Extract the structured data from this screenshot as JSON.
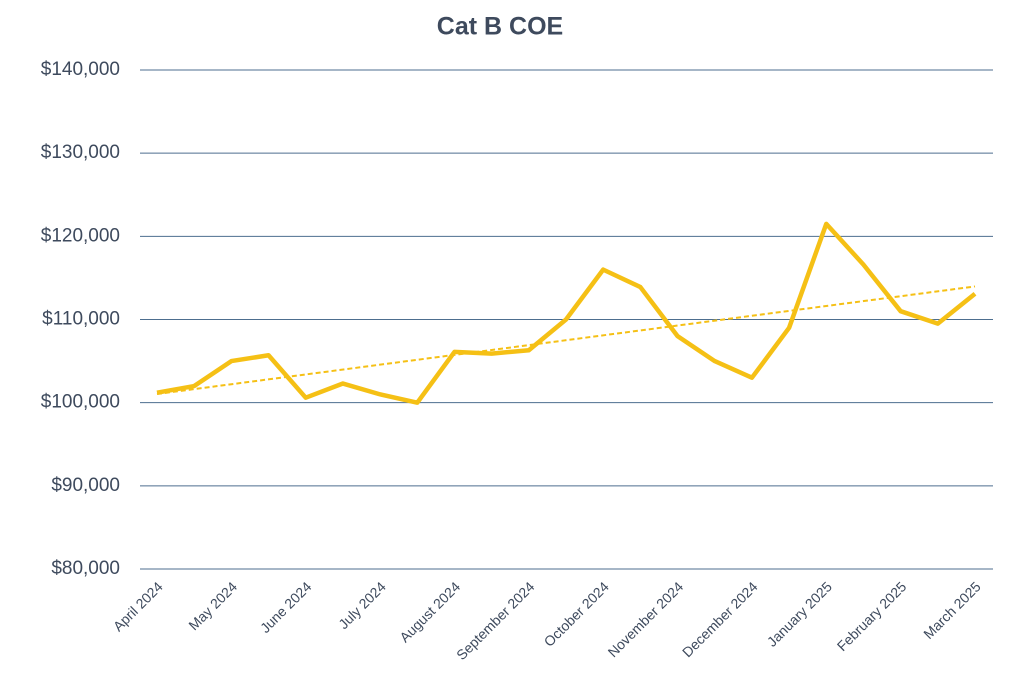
{
  "chart_data": {
    "type": "line",
    "title": "Cat B COE",
    "categories": [
      "April 2024",
      null,
      "May 2024",
      null,
      "June 2024",
      null,
      "July 2024",
      null,
      "August 2024",
      null,
      "September 2024",
      null,
      "October 2024",
      null,
      "November 2024",
      null,
      "December 2024",
      null,
      "January 2025",
      null,
      "February 2025",
      null,
      "March 2025"
    ],
    "series": [
      {
        "name": "Cat B COE",
        "color": "#f5c015",
        "values": [
          101200,
          102000,
          105000,
          105700,
          100600,
          102300,
          101000,
          100000,
          106100,
          105900,
          106300,
          110000,
          116000,
          113900,
          108000,
          105000,
          103000,
          109000,
          121500,
          116600,
          111000,
          109500,
          113100
        ]
      }
    ],
    "trendline": "linear",
    "ylim": [
      80000,
      140000
    ],
    "yticks": [
      {
        "value": 80000,
        "label": "$80,000"
      },
      {
        "value": 90000,
        "label": "$90,000"
      },
      {
        "value": 100000,
        "label": "$100,000"
      },
      {
        "value": 110000,
        "label": "$110,000"
      },
      {
        "value": 120000,
        "label": "$120,000"
      },
      {
        "value": 130000,
        "label": "$130,000"
      },
      {
        "value": 140000,
        "label": "$140,000"
      }
    ],
    "grid": true
  }
}
